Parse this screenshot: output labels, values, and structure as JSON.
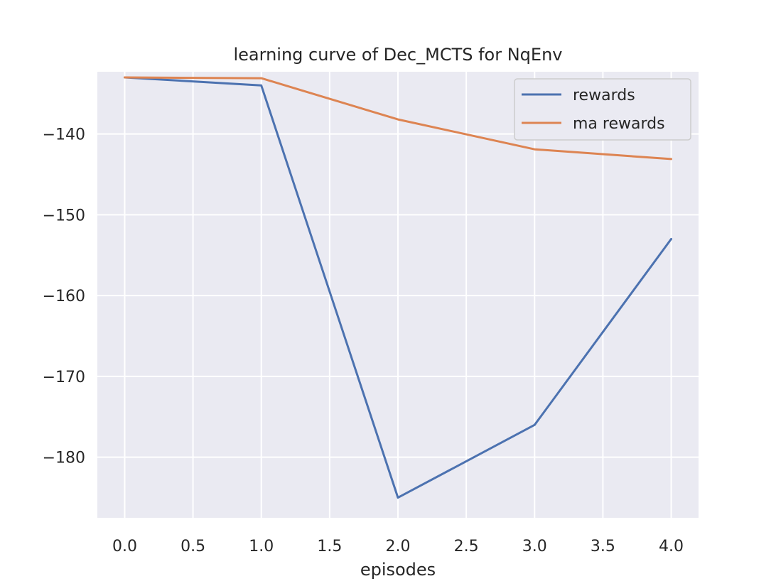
{
  "chart_data": {
    "type": "line",
    "title": "learning curve of Dec_MCTS for NqEnv",
    "xlabel": "episodes",
    "ylabel": "",
    "x": [
      0,
      1,
      2,
      3,
      4
    ],
    "xlim": [
      -0.2,
      4.2
    ],
    "ylim": [
      -187.5,
      -132.3
    ],
    "xticks": [
      0.0,
      0.5,
      1.0,
      1.5,
      2.0,
      2.5,
      3.0,
      3.5,
      4.0
    ],
    "xtick_labels": [
      "0.0",
      "0.5",
      "1.0",
      "1.5",
      "2.0",
      "2.5",
      "3.0",
      "3.5",
      "4.0"
    ],
    "yticks": [
      -140,
      -150,
      -160,
      -170,
      -180
    ],
    "ytick_labels": [
      "−140",
      "−150",
      "−160",
      "−170",
      "−180"
    ],
    "grid": true,
    "legend_position": "top-right",
    "series": [
      {
        "name": "rewards",
        "color": "#4c72b0",
        "values": [
          -133,
          -134,
          -185,
          -176,
          -153
        ]
      },
      {
        "name": "ma rewards",
        "color": "#dd8452",
        "values": [
          -133,
          -133.1,
          -138.2,
          -141.9,
          -143.1
        ]
      }
    ],
    "colors": {
      "plot_background": "#eaeaf2",
      "grid": "#ffffff",
      "legend_border": "#cccccc"
    }
  }
}
